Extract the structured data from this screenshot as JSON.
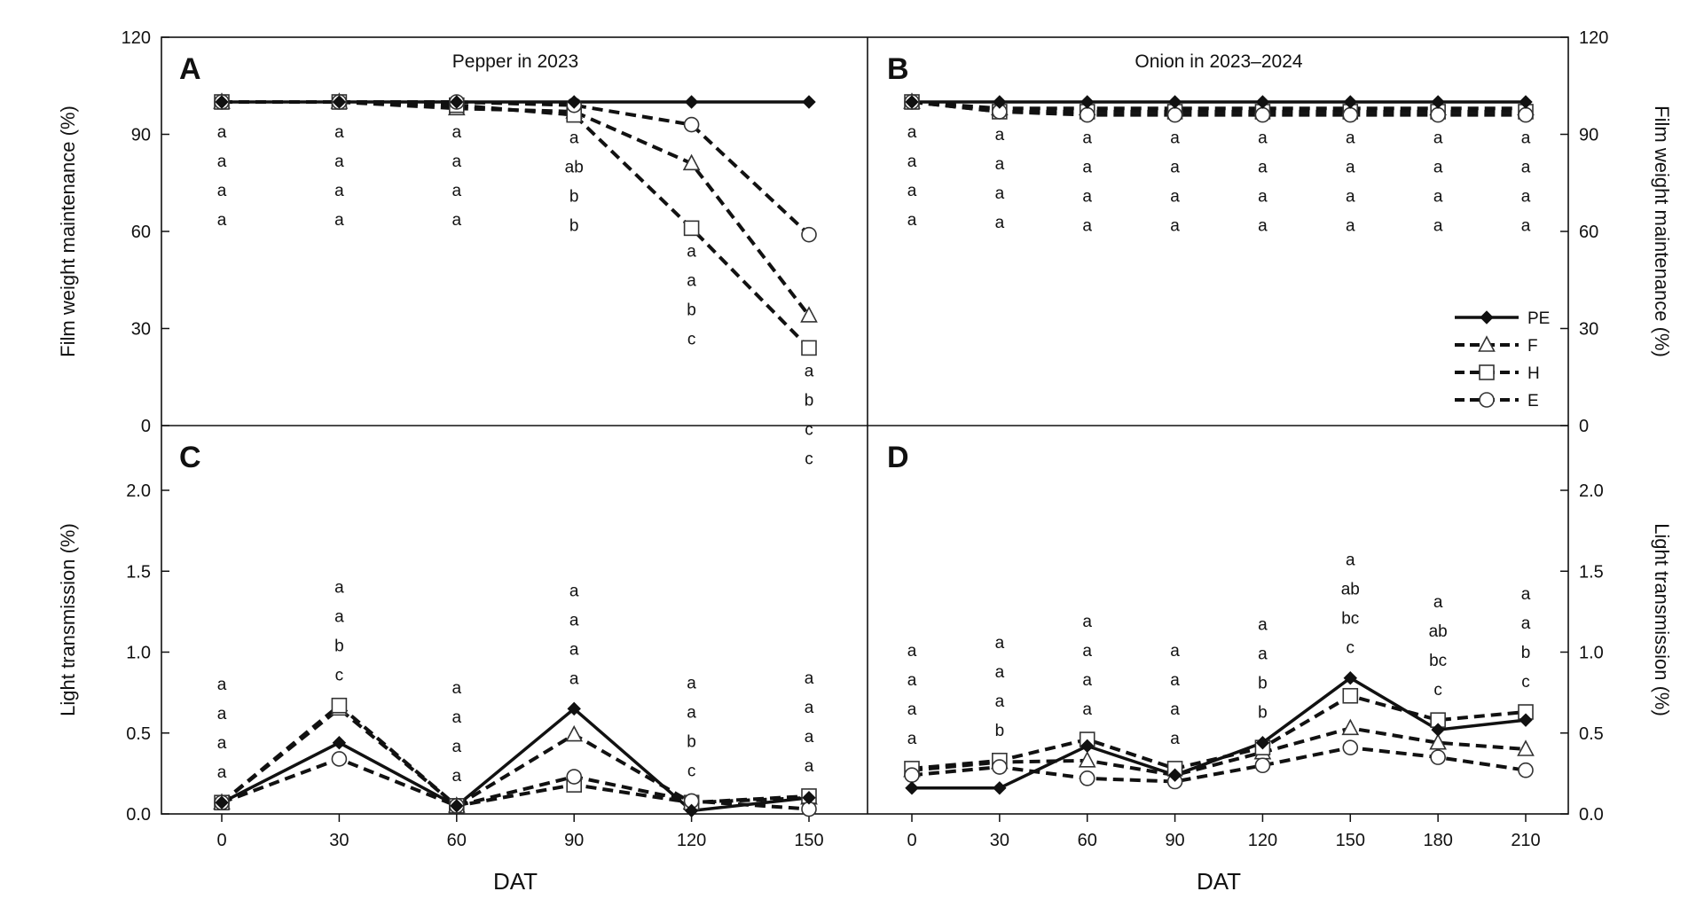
{
  "chart_data": [
    {
      "panel": "A",
      "type": "line",
      "title": "Pepper in 2023",
      "xlabel": "DAT",
      "ylabel": "Film weight maintenance (%)",
      "ylim": [
        0,
        120
      ],
      "yticks": [
        "0",
        "30",
        "60",
        "90",
        "120"
      ],
      "x": [
        0,
        30,
        60,
        90,
        120,
        150
      ],
      "xticks": [
        "0",
        "30",
        "60",
        "90",
        "120",
        "150"
      ],
      "series": [
        {
          "name": "PE",
          "values": [
            100,
            100,
            100,
            100,
            100,
            100
          ]
        },
        {
          "name": "F",
          "values": [
            100,
            100,
            98,
            97,
            81,
            34
          ]
        },
        {
          "name": "H",
          "values": [
            100,
            100,
            99,
            96,
            61,
            24
          ]
        },
        {
          "name": "E",
          "values": [
            100,
            100,
            100,
            99,
            93,
            59
          ]
        }
      ],
      "significance": [
        {
          "x": 0,
          "labels": [
            "a",
            "a",
            "a",
            "a"
          ]
        },
        {
          "x": 30,
          "labels": [
            "a",
            "a",
            "a",
            "a"
          ]
        },
        {
          "x": 60,
          "labels": [
            "a",
            "a",
            "a",
            "a"
          ]
        },
        {
          "x": 90,
          "labels": [
            "a",
            "ab",
            "b",
            "b"
          ]
        },
        {
          "x": 120,
          "labels": [
            "a",
            "a",
            "b",
            "c"
          ]
        },
        {
          "x": 150,
          "labels": [
            "a",
            "b",
            "c",
            "c"
          ]
        }
      ]
    },
    {
      "panel": "B",
      "type": "line",
      "title": "Onion in 2023–2024",
      "xlabel": "DAT",
      "ylabel": "Film weight maintenance (%)",
      "ylim": [
        0,
        120
      ],
      "yticks": [
        "0",
        "30",
        "60",
        "90",
        "120"
      ],
      "x": [
        0,
        30,
        60,
        90,
        120,
        150,
        180,
        210
      ],
      "xticks": [
        "0",
        "30",
        "60",
        "90",
        "120",
        "150",
        "180",
        "210"
      ],
      "series": [
        {
          "name": "PE",
          "values": [
            100,
            100,
            100,
            100,
            100,
            100,
            100,
            100
          ]
        },
        {
          "name": "F",
          "values": [
            100,
            98,
            98,
            98,
            98,
            98,
            98,
            98
          ]
        },
        {
          "name": "H",
          "values": [
            100,
            97,
            97,
            97,
            97,
            97,
            97,
            97
          ]
        },
        {
          "name": "E",
          "values": [
            100,
            97,
            96,
            96,
            96,
            96,
            96,
            96
          ]
        }
      ],
      "significance": [
        {
          "x": 0,
          "labels": [
            "a",
            "a",
            "a",
            "a"
          ]
        },
        {
          "x": 30,
          "labels": [
            "a",
            "a",
            "a",
            "a"
          ]
        },
        {
          "x": 60,
          "labels": [
            "a",
            "a",
            "a",
            "a"
          ]
        },
        {
          "x": 90,
          "labels": [
            "a",
            "a",
            "a",
            "a"
          ]
        },
        {
          "x": 120,
          "labels": [
            "a",
            "a",
            "a",
            "a"
          ]
        },
        {
          "x": 150,
          "labels": [
            "a",
            "a",
            "a",
            "a"
          ]
        },
        {
          "x": 180,
          "labels": [
            "a",
            "a",
            "a",
            "a"
          ]
        },
        {
          "x": 210,
          "labels": [
            "a",
            "a",
            "a",
            "a"
          ]
        }
      ],
      "legend": [
        "PE",
        "F",
        "H",
        "E"
      ],
      "legend_position": "bottom-right"
    },
    {
      "panel": "C",
      "type": "line",
      "title": "",
      "xlabel": "DAT",
      "ylabel": "Light transmission (%)",
      "ylim": [
        0,
        2.4
      ],
      "yticks": [
        "0.0",
        "0.5",
        "1.0",
        "1.5",
        "2.0"
      ],
      "x": [
        0,
        30,
        60,
        90,
        120,
        150
      ],
      "xticks": [
        "0",
        "30",
        "60",
        "90",
        "120",
        "150"
      ],
      "series": [
        {
          "name": "PE",
          "values": [
            0.07,
            0.44,
            0.05,
            0.65,
            0.02,
            0.1
          ]
        },
        {
          "name": "F",
          "values": [
            0.07,
            0.65,
            0.05,
            0.49,
            0.07,
            0.1
          ]
        },
        {
          "name": "H",
          "values": [
            0.07,
            0.67,
            0.05,
            0.18,
            0.07,
            0.11
          ]
        },
        {
          "name": "E",
          "values": [
            0.07,
            0.34,
            0.05,
            0.23,
            0.08,
            0.03
          ]
        }
      ],
      "significance": [
        {
          "x": 0,
          "labels": [
            "a",
            "a",
            "a",
            "a"
          ]
        },
        {
          "x": 30,
          "labels": [
            "a",
            "a",
            "b",
            "c"
          ]
        },
        {
          "x": 60,
          "labels": [
            "a",
            "a",
            "a",
            "a"
          ]
        },
        {
          "x": 90,
          "labels": [
            "a",
            "a",
            "a",
            "a"
          ]
        },
        {
          "x": 120,
          "labels": [
            "a",
            "a",
            "b",
            "c"
          ]
        },
        {
          "x": 150,
          "labels": [
            "a",
            "a",
            "a",
            "a"
          ]
        }
      ]
    },
    {
      "panel": "D",
      "type": "line",
      "title": "",
      "xlabel": "DAT",
      "ylabel": "Light transmission (%)",
      "ylim": [
        0,
        2.4
      ],
      "yticks": [
        "0.0",
        "0.5",
        "1.0",
        "1.5",
        "2.0"
      ],
      "x": [
        0,
        30,
        60,
        90,
        120,
        150,
        180,
        210
      ],
      "xticks": [
        "0",
        "30",
        "60",
        "90",
        "120",
        "150",
        "180",
        "210"
      ],
      "series": [
        {
          "name": "PE",
          "values": [
            0.16,
            0.16,
            0.42,
            0.24,
            0.44,
            0.84,
            0.52,
            0.58
          ]
        },
        {
          "name": "F",
          "values": [
            0.27,
            0.32,
            0.33,
            0.24,
            0.38,
            0.53,
            0.44,
            0.4
          ]
        },
        {
          "name": "H",
          "values": [
            0.28,
            0.33,
            0.46,
            0.28,
            0.41,
            0.73,
            0.58,
            0.63
          ]
        },
        {
          "name": "E",
          "values": [
            0.24,
            0.29,
            0.22,
            0.2,
            0.3,
            0.41,
            0.35,
            0.27
          ]
        }
      ],
      "significance": [
        {
          "x": 0,
          "labels": [
            "a",
            "a",
            "a",
            "a"
          ]
        },
        {
          "x": 30,
          "labels": [
            "a",
            "a",
            "a",
            "b"
          ]
        },
        {
          "x": 60,
          "labels": [
            "a",
            "a",
            "a",
            "a"
          ]
        },
        {
          "x": 90,
          "labels": [
            "a",
            "a",
            "a",
            "a"
          ]
        },
        {
          "x": 120,
          "labels": [
            "a",
            "a",
            "b",
            "b"
          ]
        },
        {
          "x": 150,
          "labels": [
            "a",
            "ab",
            "bc",
            "c"
          ]
        },
        {
          "x": 180,
          "labels": [
            "a",
            "ab",
            "bc",
            "c"
          ]
        },
        {
          "x": 210,
          "labels": [
            "a",
            "a",
            "b",
            "c"
          ]
        }
      ]
    }
  ]
}
